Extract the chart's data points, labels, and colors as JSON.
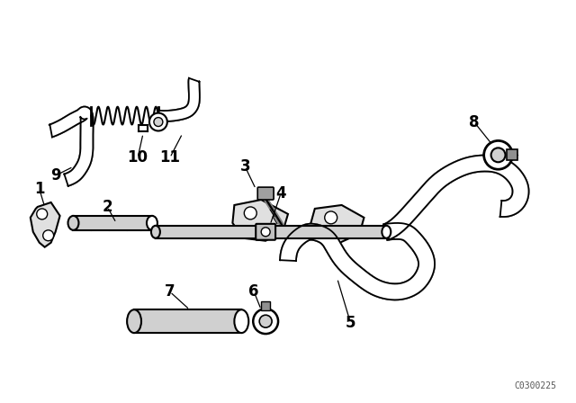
{
  "background_color": "#ffffff",
  "line_color": "#000000",
  "label_color": "#000000",
  "diagram_code": "C0300225",
  "figsize": [
    6.4,
    4.48
  ],
  "dpi": 100
}
